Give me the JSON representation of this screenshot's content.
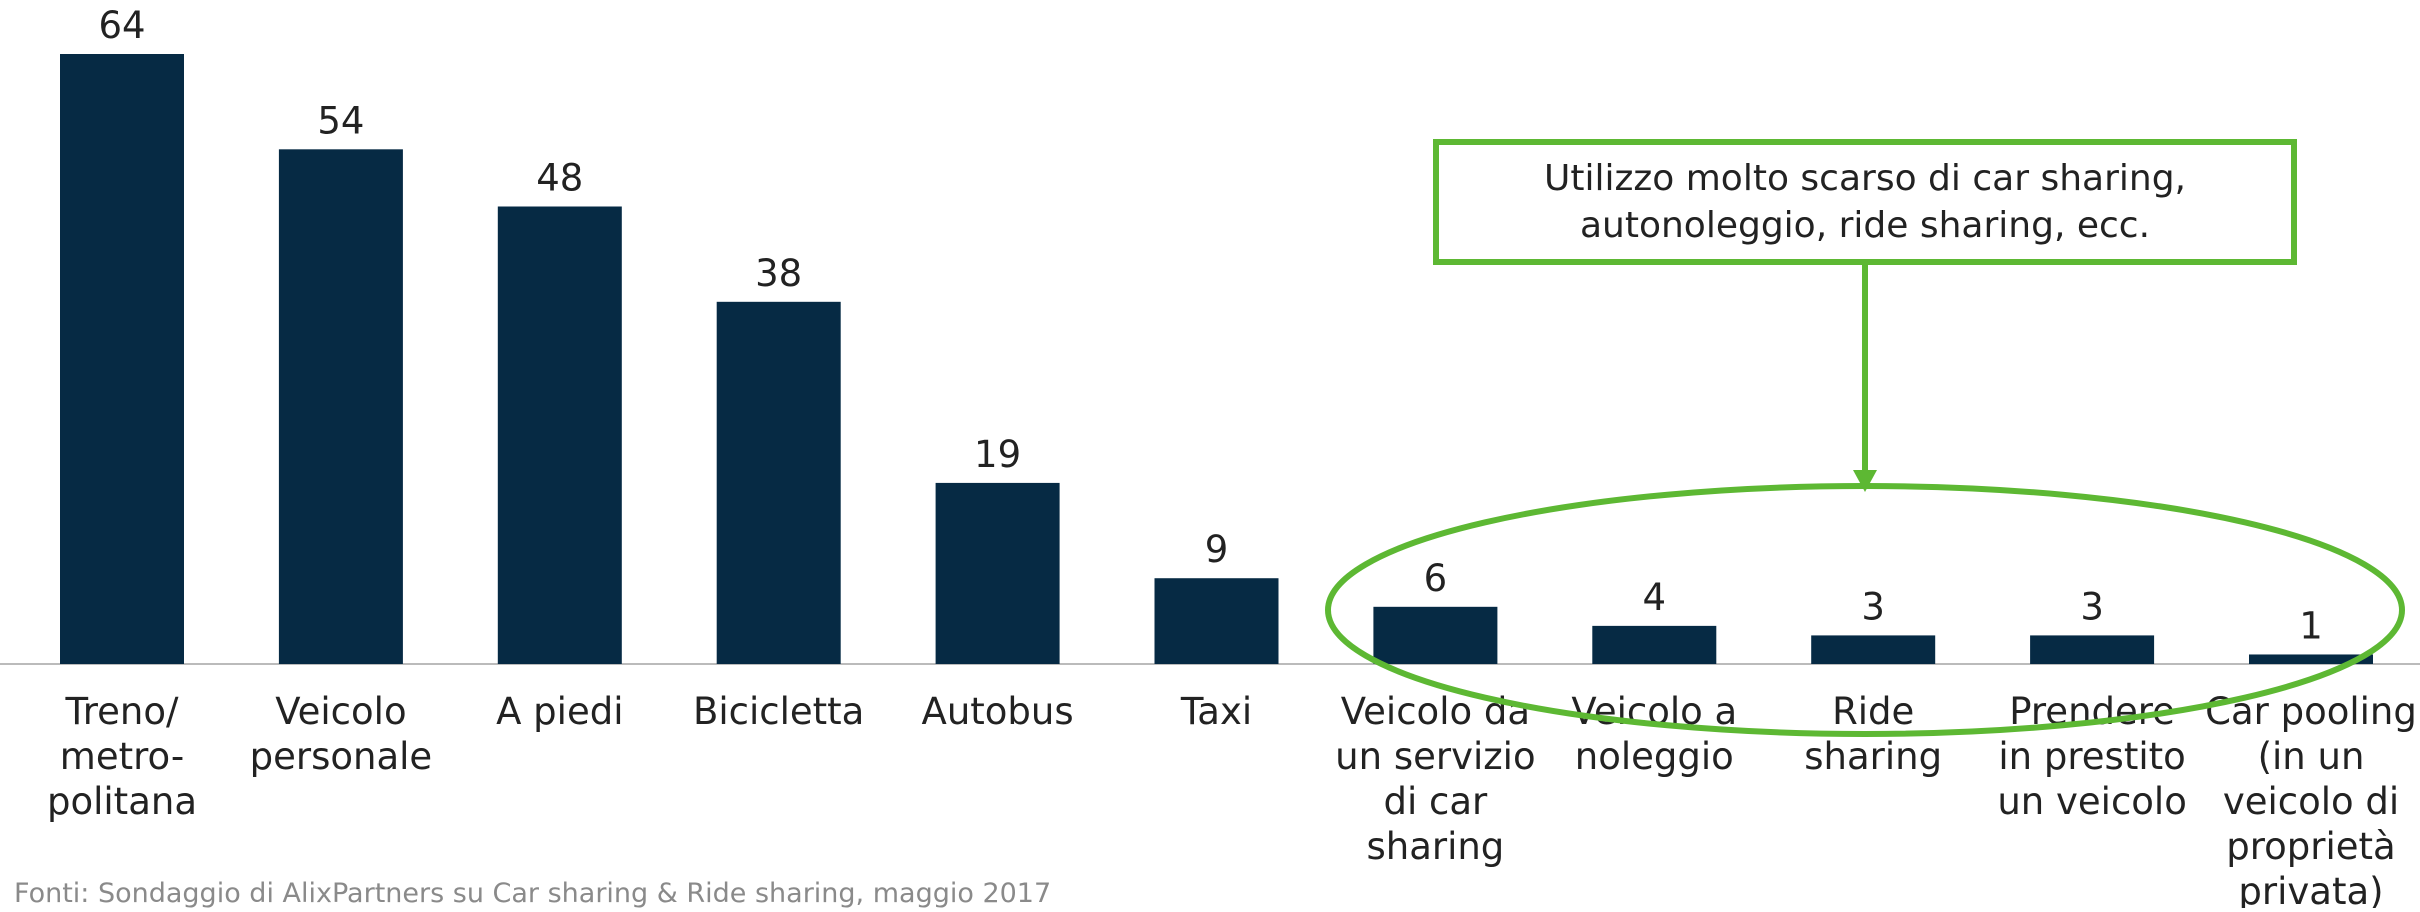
{
  "chart_data": {
    "type": "bar",
    "categories": [
      "Treno/\nmetro-\npolitana",
      "Veicolo\npersonale",
      "A piedi",
      "Bicicletta",
      "Autobus",
      "Taxi",
      "Veicolo da\nun servizio\ndi car\nsharing",
      "Veicolo a\nnoleggio",
      "Ride\nsharing",
      "Prendere\nin prestito\nun veicolo",
      "Car pooling\n(in un\nveicolo di\nproprietà\nprivata)"
    ],
    "values": [
      64,
      54,
      48,
      38,
      19,
      9,
      6,
      4,
      3,
      3,
      1
    ],
    "color": "#062a44",
    "annotation": "Utilizzo molto scarso di car sharing,\nautonoleggio, ride sharing, ecc.",
    "annotation_color": "#5db833",
    "source": "Fonti: Sondaggio di AlixPartners su Car sharing & Ride sharing, maggio 2017"
  }
}
